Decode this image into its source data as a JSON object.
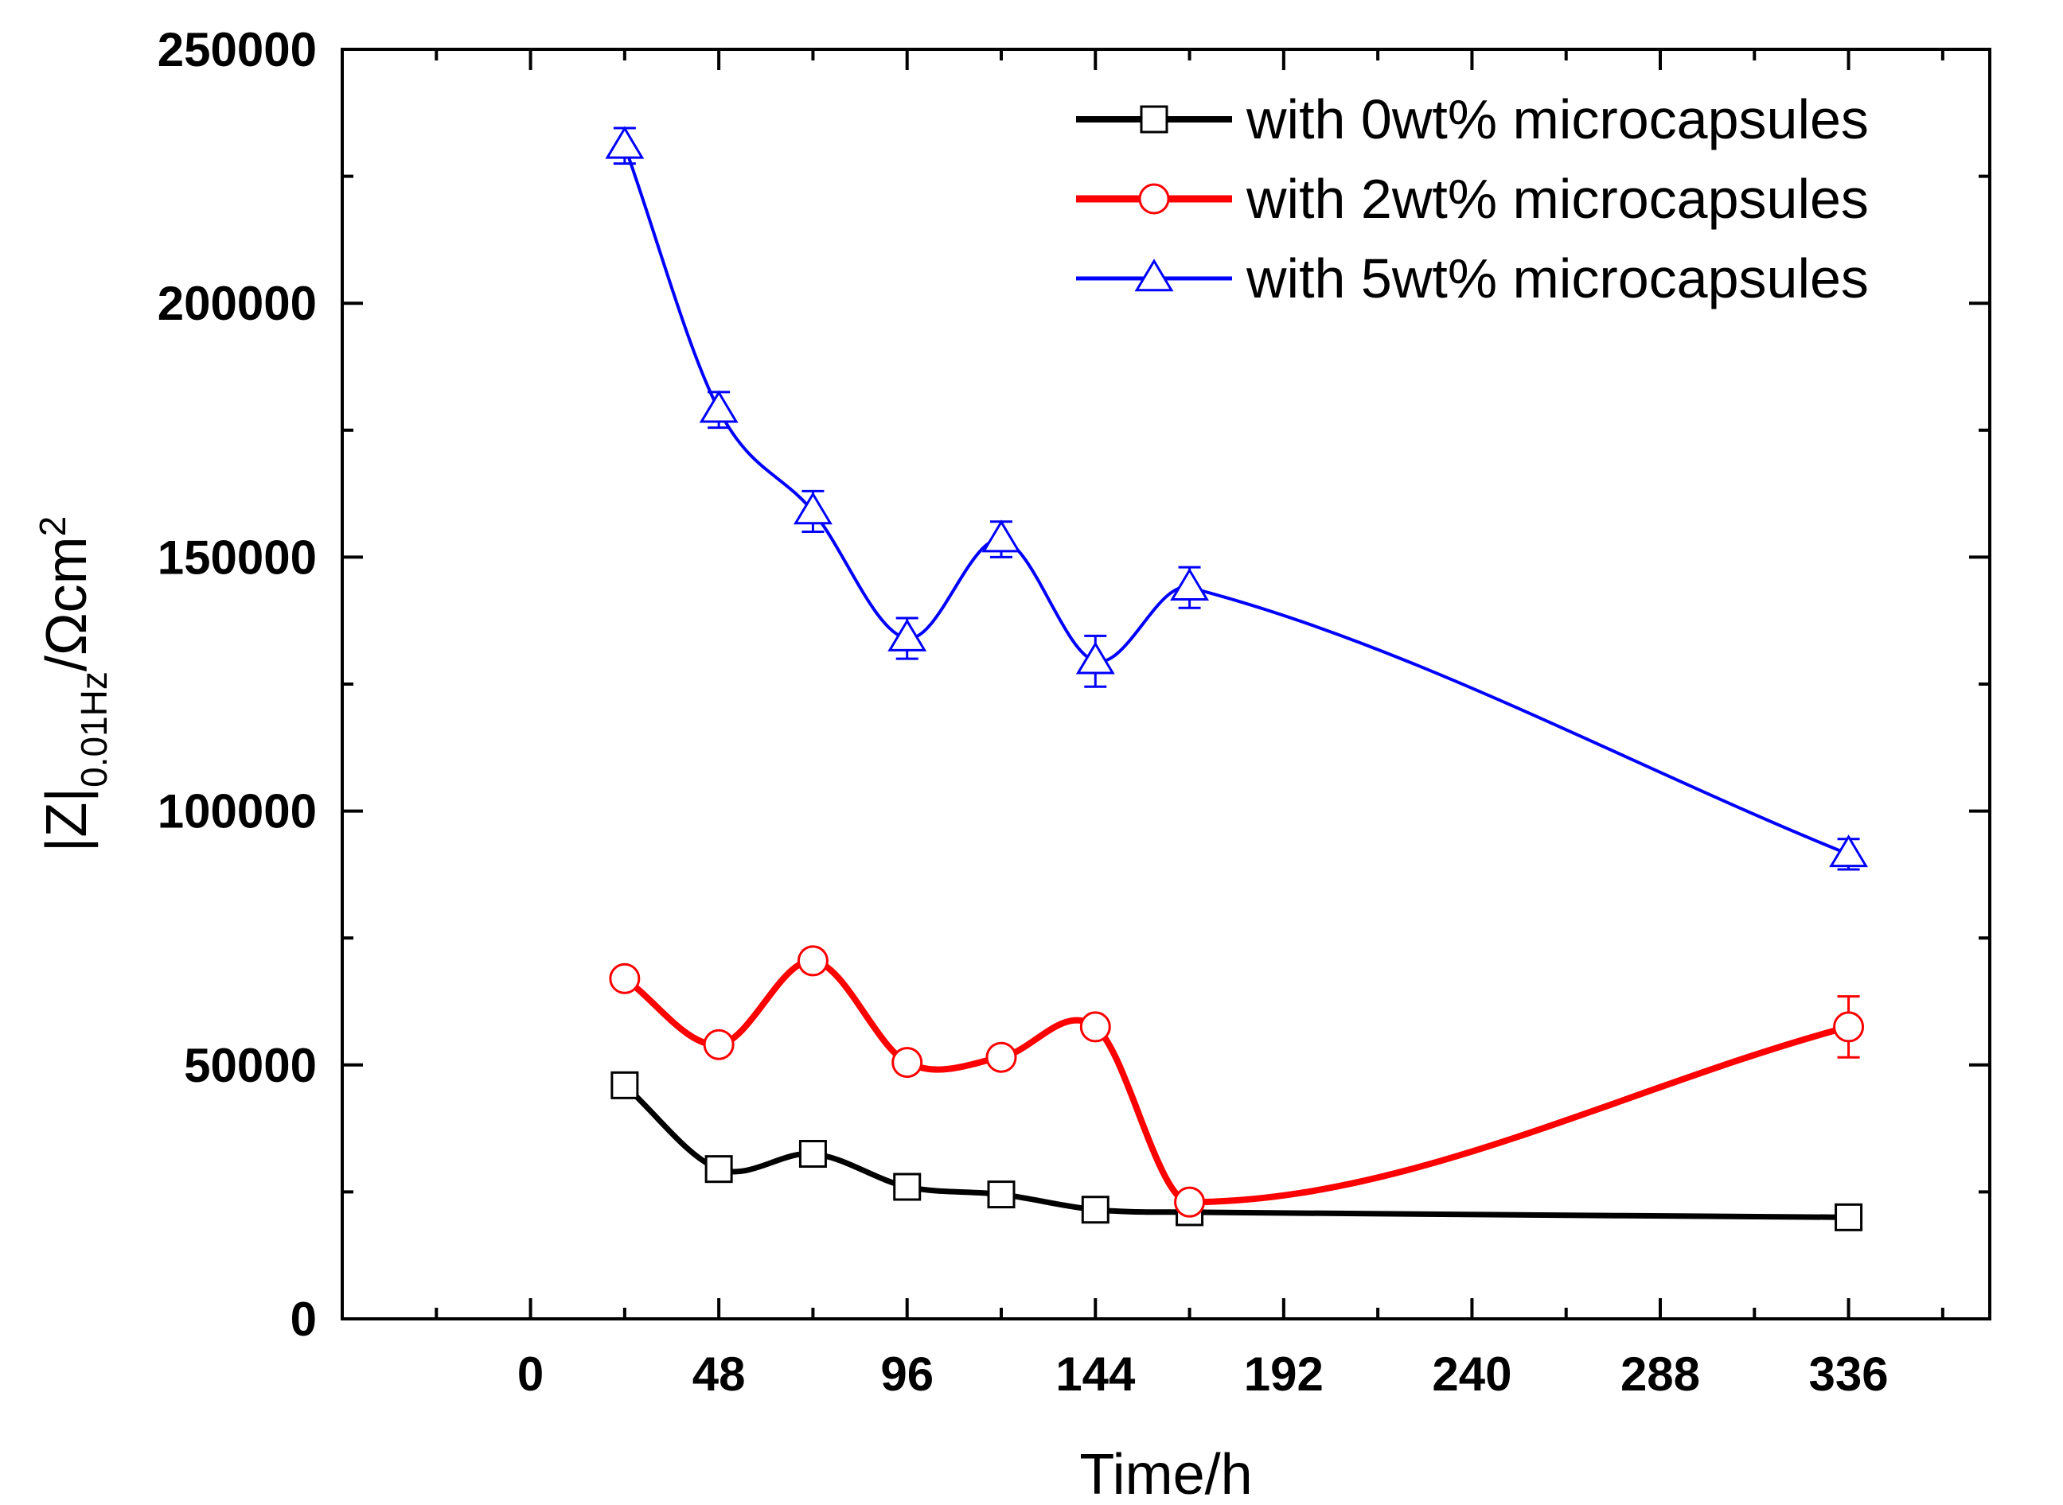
{
  "chart_data": {
    "type": "line",
    "title": "",
    "xlabel": "Time/h",
    "ylabel": {
      "main": "|Z|",
      "subscript": "0.01Hz",
      "unit": "/Ωcm",
      "superscript": "2"
    },
    "xlim": [
      -48,
      372
    ],
    "ylim": [
      0,
      250000
    ],
    "xticks": [
      0,
      48,
      96,
      144,
      192,
      240,
      288,
      336
    ],
    "xtick_labels": [
      "0",
      "48",
      "96",
      "144",
      "192",
      "240",
      "288",
      "336"
    ],
    "yticks": [
      0,
      50000,
      100000,
      150000,
      200000,
      250000
    ],
    "ytick_labels": [
      "0",
      "50000",
      "100000",
      "150000",
      "200000",
      "250000"
    ],
    "grid": false,
    "legend_position": "top-right",
    "series": [
      {
        "name": "with 0wt% microcapsules",
        "color": "#000000",
        "marker": "square",
        "x": [
          24,
          48,
          72,
          96,
          120,
          144,
          168,
          336
        ],
        "y": [
          46000,
          29500,
          32500,
          26000,
          24500,
          21500,
          21000,
          20000
        ],
        "err": [
          1000,
          1000,
          1000,
          1000,
          1000,
          1000,
          1000,
          800
        ]
      },
      {
        "name": "with 2wt% microcapsules",
        "color": "#ff0000",
        "marker": "circle",
        "x": [
          24,
          48,
          72,
          96,
          120,
          144,
          168,
          336
        ],
        "y": [
          67000,
          54000,
          70500,
          50500,
          51500,
          57500,
          23000,
          57500
        ],
        "err": [
          1500,
          1500,
          2000,
          1500,
          1500,
          1500,
          1500,
          6000
        ]
      },
      {
        "name": "with 5wt% microcapsules",
        "color": "#0000ff",
        "marker": "triangle",
        "x": [
          24,
          48,
          72,
          96,
          120,
          144,
          168,
          336
        ],
        "y": [
          231000,
          179000,
          159000,
          134000,
          153500,
          129500,
          144000,
          91500
        ],
        "err": [
          3500,
          3500,
          4000,
          4000,
          3500,
          5000,
          4000,
          3000
        ]
      }
    ]
  }
}
